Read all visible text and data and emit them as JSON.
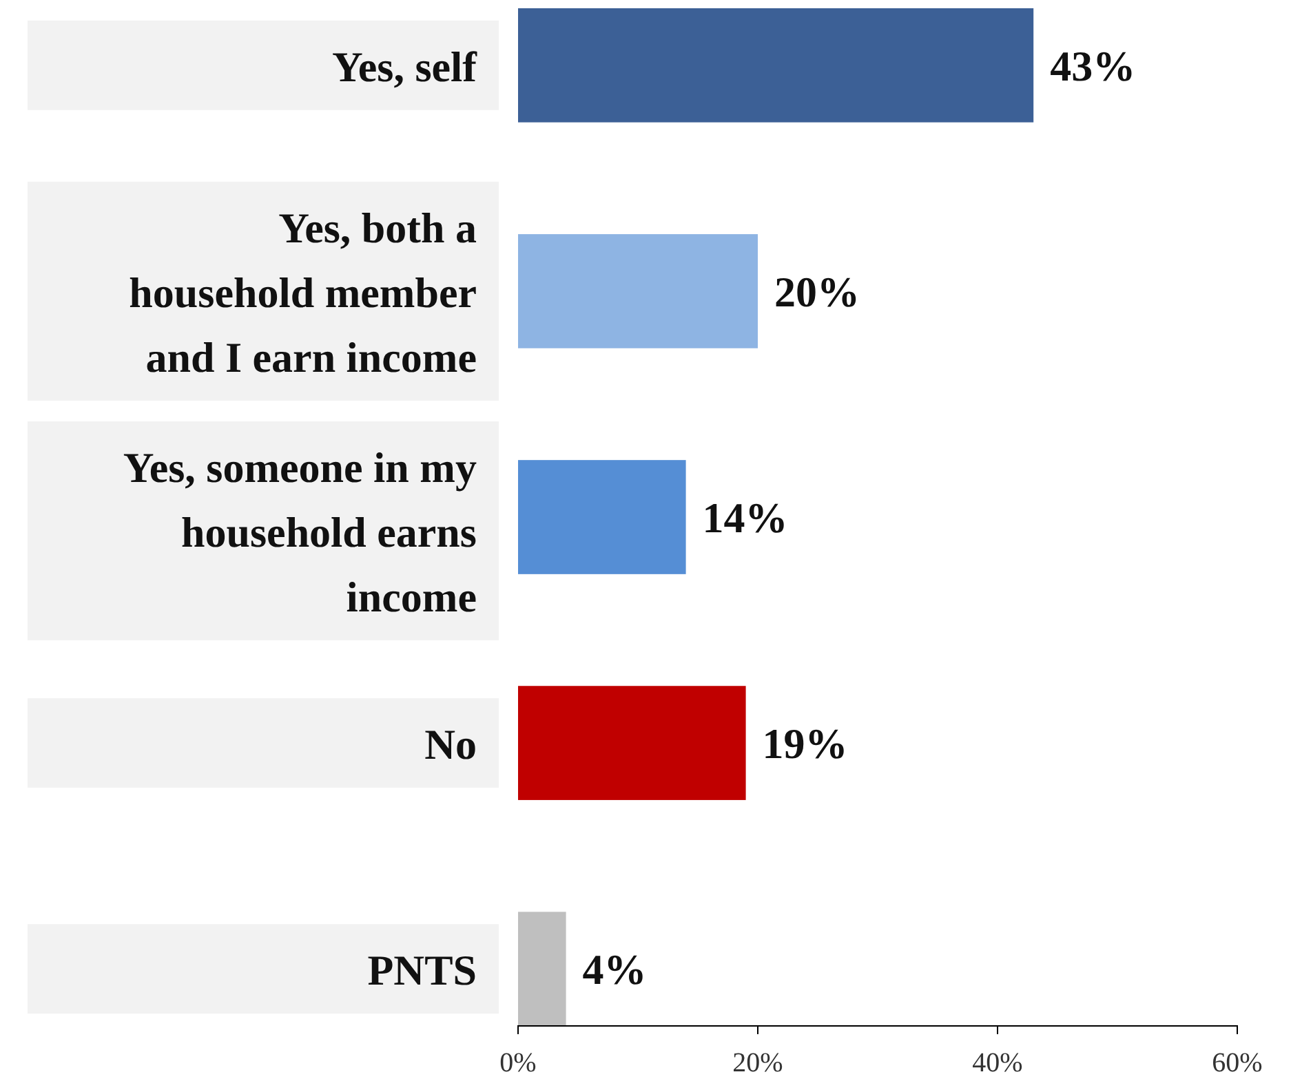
{
  "chart_data": {
    "type": "bar",
    "orientation": "horizontal",
    "categories": [
      "Yes, self",
      "Yes, both a household member and I earn income",
      "Yes, someone in my household earns income",
      "No",
      "PNTS"
    ],
    "values": [
      43,
      20,
      14,
      19,
      4
    ],
    "colors": [
      "#3c6096",
      "#8eb4e3",
      "#558ed5",
      "#c00000",
      "#bfbfbf"
    ],
    "value_labels": [
      "43%",
      "20%",
      "14%",
      "19%",
      "4%"
    ],
    "xlim": [
      0,
      60
    ],
    "xticks": [
      {
        "value": 0,
        "label": "0%"
      },
      {
        "value": 20,
        "label": "20%"
      },
      {
        "value": 40,
        "label": "40%"
      },
      {
        "value": 60,
        "label": "60%"
      }
    ],
    "grid": false
  }
}
